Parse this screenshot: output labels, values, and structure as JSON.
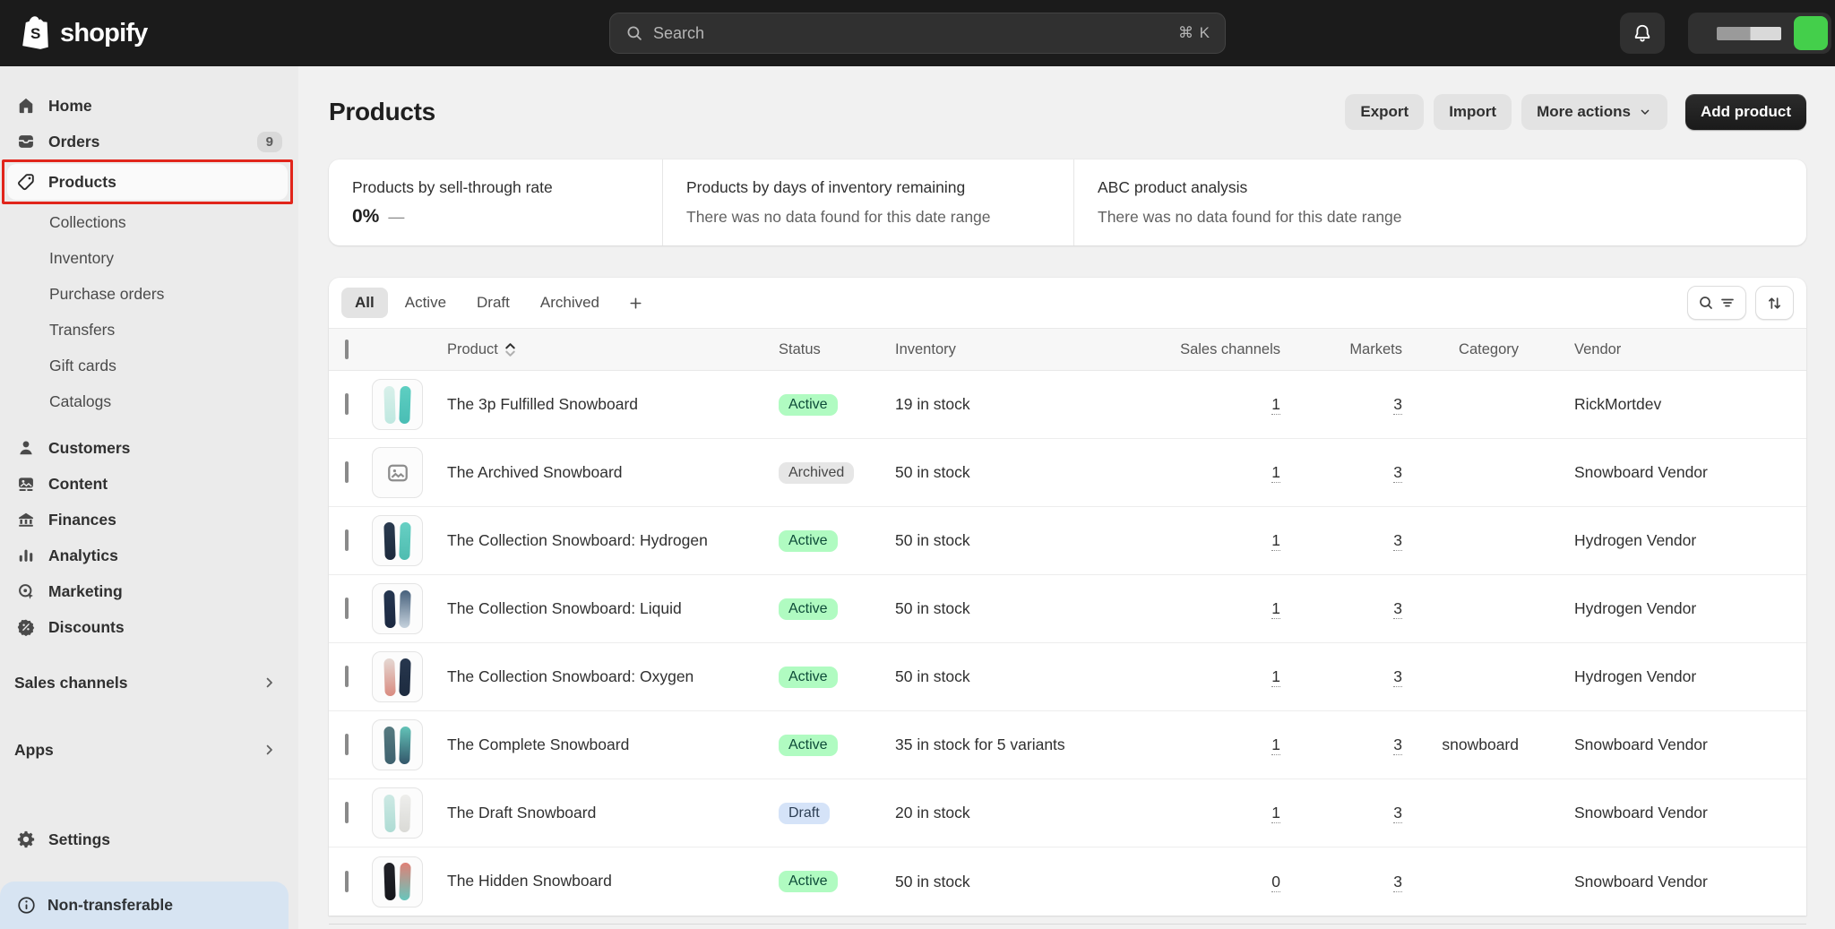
{
  "topbar": {
    "logo_text": "shopify",
    "search": {
      "placeholder": "Search",
      "shortcut": "⌘ K"
    },
    "store": {
      "avatar_color": "#44cf4b"
    }
  },
  "sidebar": {
    "items": [
      {
        "label": "Home",
        "icon": "home-icon"
      },
      {
        "label": "Orders",
        "icon": "orders-icon",
        "badge": "9"
      },
      {
        "label": "Products",
        "icon": "tag-icon",
        "selected": true,
        "annotated": true
      },
      {
        "label": "Collections",
        "sub": true
      },
      {
        "label": "Inventory",
        "sub": true
      },
      {
        "label": "Purchase orders",
        "sub": true
      },
      {
        "label": "Transfers",
        "sub": true
      },
      {
        "label": "Gift cards",
        "sub": true
      },
      {
        "label": "Catalogs",
        "sub": true
      },
      {
        "label": "Customers",
        "icon": "person-icon",
        "gap": true
      },
      {
        "label": "Content",
        "icon": "content-icon"
      },
      {
        "label": "Finances",
        "icon": "bank-icon"
      },
      {
        "label": "Analytics",
        "icon": "analytics-icon"
      },
      {
        "label": "Marketing",
        "icon": "marketing-icon"
      },
      {
        "label": "Discounts",
        "icon": "discount-icon"
      }
    ],
    "sales_channels_label": "Sales channels",
    "apps_label": "Apps",
    "settings_label": "Settings",
    "banner_label": "Non-transferable",
    "annotation_color": "#e1251b",
    "banner_bg": "#d7e4f2"
  },
  "page": {
    "title": "Products",
    "actions": {
      "export_label": "Export",
      "import_label": "Import",
      "more_actions_label": "More actions",
      "add_product_label": "Add product"
    }
  },
  "metrics": [
    {
      "title": "Products by sell-through rate",
      "value": "0%",
      "dash": "—"
    },
    {
      "title": "Products by days of inventory remaining",
      "empty": "There was no data found for this date range"
    },
    {
      "title": "ABC product analysis",
      "empty": "There was no data found for this date range"
    }
  ],
  "tabs": {
    "items": [
      "All",
      "Active",
      "Draft",
      "Archived"
    ],
    "active_index": 0
  },
  "table": {
    "columns": {
      "product": "Product",
      "status": "Status",
      "inventory": "Inventory",
      "sales_channels": "Sales channels",
      "markets": "Markets",
      "category": "Category",
      "vendor": "Vendor"
    },
    "status_colors": {
      "Active": "#b0fbc1",
      "Draft": "#d5e3f8",
      "Archived": "#e6e6e6"
    },
    "rows": [
      {
        "name": "The 3p Fulfilled Snowboard",
        "status": "Active",
        "inventory": "19 in stock",
        "sales_channels": "1",
        "markets": "3",
        "category": "",
        "vendor": "RickMortdev",
        "thumb": {
          "left": [
            "#d8f0ea",
            "#bfe8e0"
          ],
          "right": [
            "#5ecfc2",
            "#49bdb4"
          ]
        }
      },
      {
        "name": "The Archived Snowboard",
        "status": "Archived",
        "inventory": "50 in stock",
        "sales_channels": "1",
        "markets": "3",
        "category": "",
        "vendor": "Snowboard Vendor",
        "thumb": {
          "placeholder": true
        }
      },
      {
        "name": "The Collection Snowboard: Hydrogen",
        "status": "Active",
        "inventory": "50 in stock",
        "sales_channels": "1",
        "markets": "3",
        "category": "",
        "vendor": "Hydrogen Vendor",
        "thumb": {
          "left": [
            "#2a3b50",
            "#1d2a3c"
          ],
          "right": [
            "#67d0c4",
            "#4fbcb0"
          ]
        }
      },
      {
        "name": "The Collection Snowboard: Liquid",
        "status": "Active",
        "inventory": "50 in stock",
        "sales_channels": "1",
        "markets": "3",
        "category": "",
        "vendor": "Hydrogen Vendor",
        "thumb": {
          "left": [
            "#253650",
            "#1b2840"
          ],
          "right": [
            "#47617c",
            "#c6d2dd"
          ]
        }
      },
      {
        "name": "The Collection Snowboard: Oxygen",
        "status": "Active",
        "inventory": "50 in stock",
        "sales_channels": "1",
        "markets": "3",
        "category": "",
        "vendor": "Hydrogen Vendor",
        "thumb": {
          "left": [
            "#e5d8d3",
            "#d98b80"
          ],
          "right": [
            "#27374e",
            "#1d2b3f"
          ]
        }
      },
      {
        "name": "The Complete Snowboard",
        "status": "Active",
        "inventory": "35 in stock for 5 variants",
        "sales_channels": "1",
        "markets": "3",
        "category": "snowboard",
        "vendor": "Snowboard Vendor",
        "thumb": {
          "left": [
            "#567a80",
            "#3e616e"
          ],
          "right": [
            "#63c3b8",
            "#33566a"
          ]
        }
      },
      {
        "name": "The Draft Snowboard",
        "status": "Draft",
        "inventory": "20 in stock",
        "sales_channels": "1",
        "markets": "3",
        "category": "",
        "vendor": "Snowboard Vendor",
        "thumb": {
          "left": [
            "#cde9e4",
            "#aedcd4"
          ],
          "right": [
            "#eeeeec",
            "#dadad6"
          ]
        }
      },
      {
        "name": "The Hidden Snowboard",
        "status": "Active",
        "inventory": "50 in stock",
        "sales_channels": "0",
        "markets": "3",
        "category": "",
        "vendor": "Snowboard Vendor",
        "thumb": {
          "left": [
            "#222329",
            "#16171c"
          ],
          "right": [
            "#e08076",
            "#67c6bc"
          ]
        }
      }
    ]
  }
}
